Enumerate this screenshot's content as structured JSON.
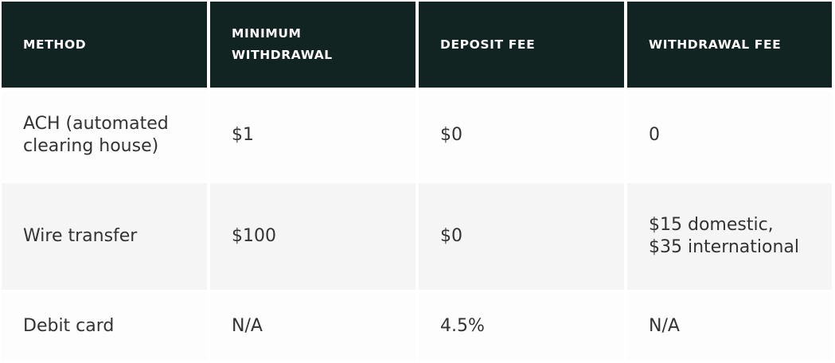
{
  "headers": [
    "Method",
    "Minimum withdrawal",
    "Deposit fee",
    "Withdrawal fee"
  ],
  "rows": [
    [
      "ACH (automated clearing house)",
      "$1",
      "$0",
      "0"
    ],
    [
      "Wire transfer",
      "$100",
      "$0",
      "$15 domestic, $35 international"
    ],
    [
      "Debit card",
      "N/A",
      "4.5%",
      "N/A"
    ]
  ]
}
